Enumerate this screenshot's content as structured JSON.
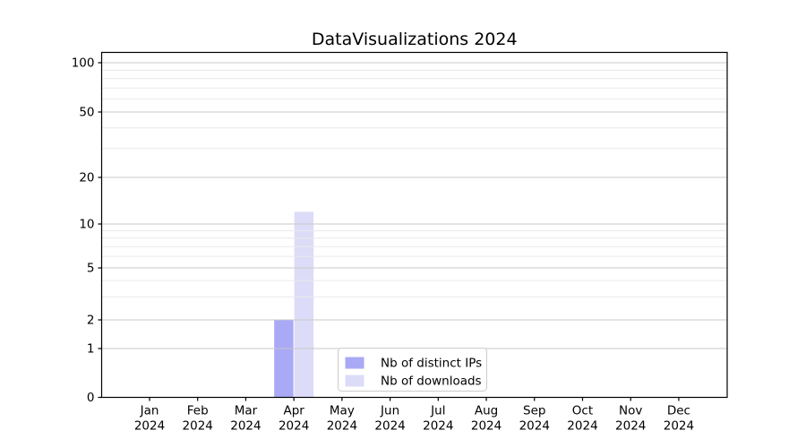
{
  "chart_data": {
    "type": "bar",
    "title": "DataVisualizations 2024",
    "categories": [
      "Jan",
      "Feb",
      "Mar",
      "Apr",
      "May",
      "Jun",
      "Jul",
      "Aug",
      "Sep",
      "Oct",
      "Nov",
      "Dec"
    ],
    "x_tick_second_line": "2024",
    "series": [
      {
        "name": "Nb of distinct IPs",
        "color": "#a9a9f6",
        "values": [
          0,
          0,
          0,
          2,
          0,
          0,
          0,
          0,
          0,
          0,
          0,
          0
        ]
      },
      {
        "name": "Nb of downloads",
        "color": "#dcdcf8",
        "values": [
          0,
          0,
          0,
          12,
          0,
          0,
          0,
          0,
          0,
          0,
          0,
          0
        ]
      }
    ],
    "xlabel": "",
    "ylabel": "",
    "y_axis": {
      "scale": "symlog",
      "major_ticks": [
        0,
        1,
        2,
        5,
        10,
        20,
        50,
        100
      ],
      "minor_ticks": [
        3,
        4,
        6,
        7,
        8,
        9,
        30,
        40,
        60,
        70,
        80,
        90
      ],
      "ylim": [
        0,
        130
      ]
    },
    "grid": "horizontal",
    "legend": {
      "position": "lower center",
      "entries": [
        {
          "label": "Nb of distinct IPs",
          "color": "#a9a9f6"
        },
        {
          "label": "Nb of downloads",
          "color": "#dcdcf8"
        }
      ]
    },
    "colors": {
      "background": "#ffffff",
      "spine": "#000000",
      "grid_major": "#c8c8c8",
      "grid_minor": "#eaeaea",
      "legend_border": "#cccccc",
      "legend_background": "#ffffff",
      "text": "#000000"
    }
  }
}
